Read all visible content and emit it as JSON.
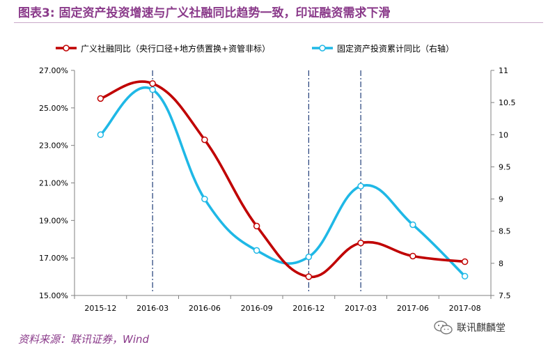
{
  "header": {
    "title": "图表3:    固定资产投资增速与广义社融同比趋势一致，印证融资需求下滑"
  },
  "footer": {
    "source": "资料来源：联讯证券，Wind"
  },
  "watermark": {
    "text": "联讯麒麟堂",
    "icon": "wechat-icon"
  },
  "colors": {
    "series_red": "#c00000",
    "series_blue": "#1fb8e6",
    "title_purple": "#8a3a8a",
    "axis": "#808080",
    "vline": "#1f3c78"
  },
  "chart_data": {
    "type": "line",
    "categories": [
      "2015-12",
      "2016-03",
      "2016-06",
      "2016-09",
      "2016-12",
      "2017-03",
      "2017-06",
      "2017-08"
    ],
    "series": [
      {
        "name": "广义社融同比（央行口径+地方债置换+资管非标）",
        "axis": "left",
        "values": [
          25.5,
          26.3,
          23.3,
          18.7,
          16.0,
          17.8,
          17.1,
          16.8
        ]
      },
      {
        "name": "固定资产投资累计同比（右轴）",
        "axis": "right",
        "values": [
          10.0,
          10.7,
          9.0,
          8.2,
          8.1,
          9.2,
          8.6,
          7.8
        ]
      }
    ],
    "left_axis": {
      "min": 15,
      "max": 27,
      "ticks": [
        "15.00%",
        "17.00%",
        "19.00%",
        "21.00%",
        "23.00%",
        "25.00%",
        "27.00%"
      ]
    },
    "right_axis": {
      "min": 7.5,
      "max": 11,
      "ticks": [
        "7.5",
        "8",
        "8.5",
        "9",
        "9.5",
        "10",
        "10.5",
        "11"
      ]
    },
    "vertical_markers": [
      "2016-03",
      "2016-12",
      "2017-03"
    ],
    "legend_position": "top"
  }
}
